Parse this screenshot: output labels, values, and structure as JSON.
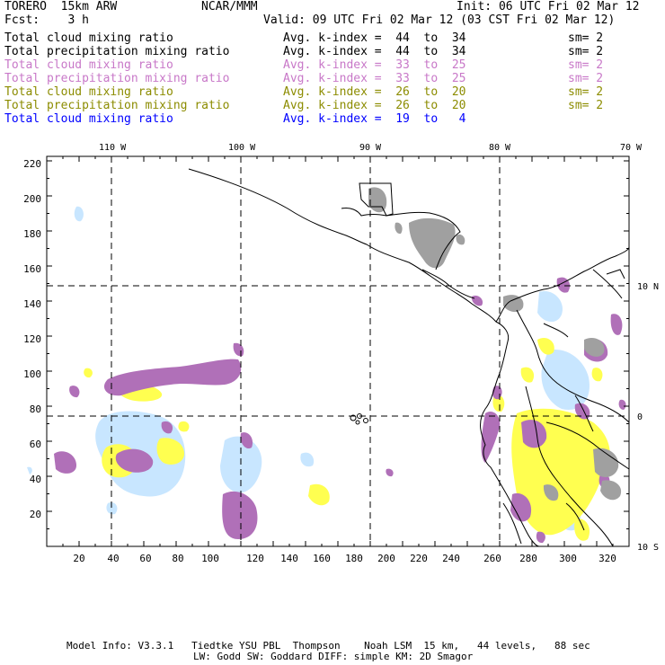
{
  "header": {
    "model": "TORERO  15km ARW",
    "center": "NCAR/MMM",
    "init": "Init: 06 UTC Fri 02 Mar 12",
    "fcst": "Fcst:    3 h",
    "valid": "Valid: 09 UTC Fri 02 Mar 12 (03 CST Fri 02 Mar 12)"
  },
  "legend": [
    {
      "name": "Total cloud mixing ratio",
      "kindex": "Avg. k-index =  44  to  34",
      "sm": "sm= 2",
      "color": "#000000"
    },
    {
      "name": "Total precipitation mixing ratio",
      "kindex": "Avg. k-index =  44  to  34",
      "sm": "sm= 2",
      "color": "#000000"
    },
    {
      "name": "Total cloud mixing ratio",
      "kindex": "Avg. k-index =  33  to  25",
      "sm": "sm= 2",
      "color": "#c878c8"
    },
    {
      "name": "Total precipitation mixing ratio",
      "kindex": "Avg. k-index =  33  to  25",
      "sm": "sm= 2",
      "color": "#c878c8"
    },
    {
      "name": "Total cloud mixing ratio",
      "kindex": "Avg. k-index =  26  to  20",
      "sm": "sm= 2",
      "color": "#8c8c00"
    },
    {
      "name": "Total precipitation mixing ratio",
      "kindex": "Avg. k-index =  26  to  20",
      "sm": "sm= 2",
      "color": "#8c8c00"
    },
    {
      "name": "Total cloud mixing ratio",
      "kindex": "Avg. k-index =  19  to   4",
      "sm": "",
      "color": "#0000ff"
    }
  ],
  "lon_labels": [
    "110 W",
    "100 W",
    "90 W",
    "80 W",
    "70 W"
  ],
  "lat_labels": [
    "10 N",
    "0",
    "10 S"
  ],
  "x_ticks": [
    "20",
    "40",
    "60",
    "80",
    "100",
    "120",
    "140",
    "160",
    "180",
    "200",
    "220",
    "240",
    "260",
    "280",
    "300",
    "320"
  ],
  "y_ticks": [
    "20",
    "40",
    "60",
    "80",
    "100",
    "120",
    "140",
    "160",
    "180",
    "200",
    "220"
  ],
  "footer": {
    "line1": "Model Info: V3.3.1   Tiedtke YSU PBL  Thompson    Noah LSM  15 km,   44 levels,   88 sec",
    "line2": "LW: Godd SW: Goddard DIFF: simple KM: 2D Smagor"
  },
  "colors": {
    "gray": "#a0a0a0",
    "purple": "#b070b8",
    "yellow": "#ffff50",
    "lightblue": "#c8e6ff"
  }
}
